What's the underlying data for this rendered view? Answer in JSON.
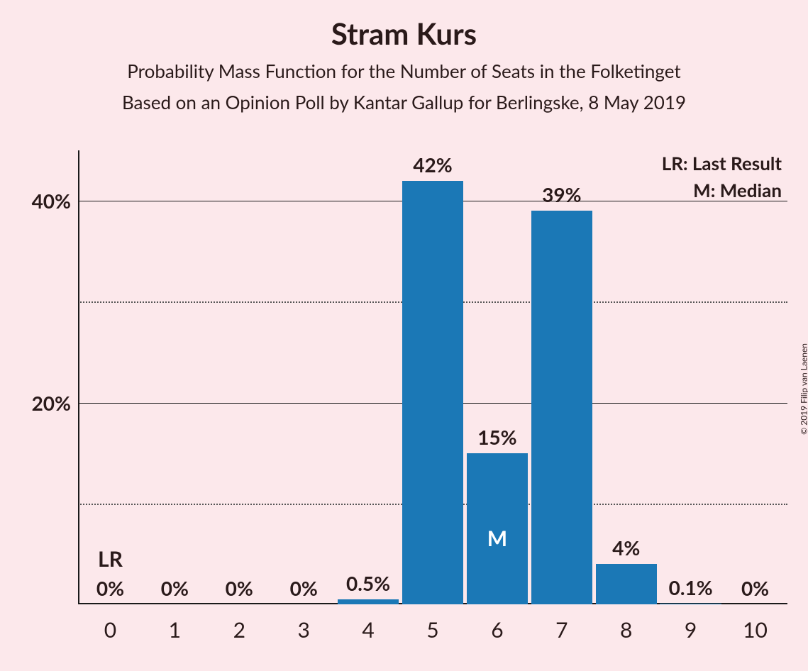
{
  "title": "Stram Kurs",
  "subtitle1": "Probability Mass Function for the Number of Seats in the Folketinget",
  "subtitle2": "Based on an Opinion Poll by Kantar Gallup for Berlingske, 8 May 2019",
  "copyright": "© 2019 Filip van Laenen",
  "legend": {
    "lr": "LR: Last Result",
    "m": "M: Median"
  },
  "chart": {
    "type": "bar",
    "bar_color": "#1b78b6",
    "background_color": "#fce8eb",
    "axis_color": "#1a1a1a",
    "grid_major_color": "#1a1a1a",
    "grid_minor_color": "#555555",
    "text_color": "#2a1a1a",
    "median_text_color": "#ffffff",
    "ylim": [
      0,
      45
    ],
    "y_major_ticks": [
      20,
      40
    ],
    "y_minor_ticks": [
      10,
      30
    ],
    "y_tick_labels": {
      "20": "20%",
      "40": "40%"
    },
    "bar_width": 0.95,
    "categories": [
      "0",
      "1",
      "2",
      "3",
      "4",
      "5",
      "6",
      "7",
      "8",
      "9",
      "10"
    ],
    "values": [
      0,
      0,
      0,
      0,
      0.5,
      42,
      15,
      39,
      4,
      0.1,
      0
    ],
    "value_labels": [
      "0%",
      "0%",
      "0%",
      "0%",
      "0.5%",
      "42%",
      "15%",
      "39%",
      "4%",
      "0.1%",
      "0%"
    ],
    "lr_index": 0,
    "lr_label": "LR",
    "median_index": 6,
    "median_label": "M",
    "title_fontsize": 42,
    "subtitle_fontsize": 26,
    "tick_fontsize": 30,
    "value_fontsize": 28,
    "legend_fontsize": 26
  }
}
